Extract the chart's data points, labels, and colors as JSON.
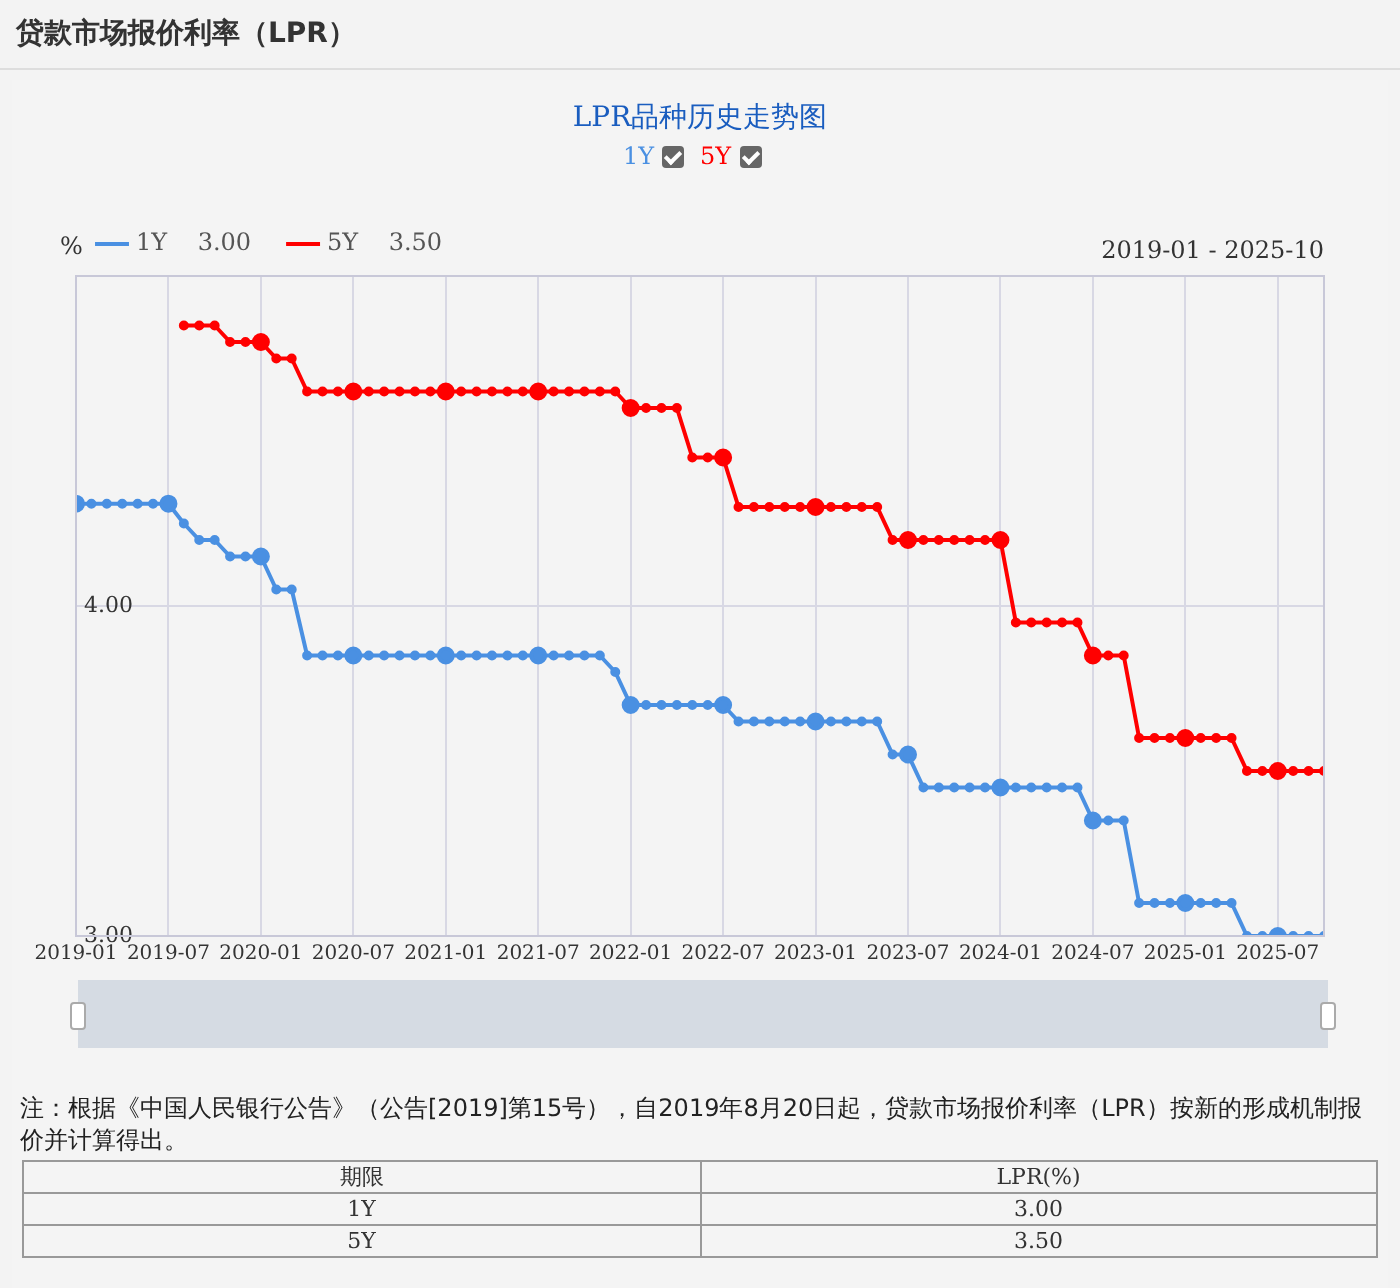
{
  "chart_data": {
    "type": "line",
    "title": "贷款市场报价利率（LPR）",
    "subtitle": "LPR品种历史走势图",
    "ylabel": "%",
    "annotations": [
      "2019-01 - 2025-10",
      "注：根据《中国人民银行公告》（公告[2019]第15号），自2019年8月20日起，贷款市场报价利率（LPR）按新的形成机制报价并计算得出。",
      "期限",
      "LPR(%)",
      "3.00",
      "3.50",
      "3.00",
      "3.50"
    ],
    "x": [
      "2019-01",
      "2019-02",
      "2019-03",
      "2019-04",
      "2019-05",
      "2019-06",
      "2019-07",
      "2019-08",
      "2019-09",
      "2019-10",
      "2019-11",
      "2019-12",
      "2020-01",
      "2020-02",
      "2020-03",
      "2020-04",
      "2020-05",
      "2020-06",
      "2020-07",
      "2020-08",
      "2020-09",
      "2020-10",
      "2020-11",
      "2020-12",
      "2021-01",
      "2021-02",
      "2021-03",
      "2021-04",
      "2021-05",
      "2021-06",
      "2021-07",
      "2021-08",
      "2021-09",
      "2021-10",
      "2021-11",
      "2021-12",
      "2022-01",
      "2022-02",
      "2022-03",
      "2022-04",
      "2022-05",
      "2022-06",
      "2022-07",
      "2022-08",
      "2022-09",
      "2022-10",
      "2022-11",
      "2022-12",
      "2023-01",
      "2023-02",
      "2023-03",
      "2023-04",
      "2023-05",
      "2023-06",
      "2023-07",
      "2023-08",
      "2023-09",
      "2023-10",
      "2023-11",
      "2023-12",
      "2024-01",
      "2024-02",
      "2024-03",
      "2024-04",
      "2024-05",
      "2024-06",
      "2024-07",
      "2024-08",
      "2024-09",
      "2024-10",
      "2024-11",
      "2024-12",
      "2025-01",
      "2025-02",
      "2025-03",
      "2025-04",
      "2025-05",
      "2025-06",
      "2025-07",
      "2025-08",
      "2025-09",
      "2025-10"
    ],
    "series": [
      {
        "name": "1Y",
        "color": "#4a90e2",
        "values": [
          4.31,
          4.31,
          4.31,
          4.31,
          4.31,
          4.31,
          4.31,
          4.25,
          4.2,
          4.2,
          4.15,
          4.15,
          4.15,
          4.05,
          4.05,
          3.85,
          3.85,
          3.85,
          3.85,
          3.85,
          3.85,
          3.85,
          3.85,
          3.85,
          3.85,
          3.85,
          3.85,
          3.85,
          3.85,
          3.85,
          3.85,
          3.85,
          3.85,
          3.85,
          3.85,
          3.8,
          3.7,
          3.7,
          3.7,
          3.7,
          3.7,
          3.7,
          3.7,
          3.65,
          3.65,
          3.65,
          3.65,
          3.65,
          3.65,
          3.65,
          3.65,
          3.65,
          3.65,
          3.55,
          3.55,
          3.45,
          3.45,
          3.45,
          3.45,
          3.45,
          3.45,
          3.45,
          3.45,
          3.45,
          3.45,
          3.45,
          3.35,
          3.35,
          3.35,
          3.1,
          3.1,
          3.1,
          3.1,
          3.1,
          3.1,
          3.1,
          3.0,
          3.0,
          3.0,
          3.0,
          3.0,
          3.0
        ]
      },
      {
        "name": "5Y",
        "color": "#ff0000",
        "values": [
          null,
          null,
          null,
          null,
          null,
          null,
          null,
          4.85,
          4.85,
          4.85,
          4.8,
          4.8,
          4.8,
          4.75,
          4.75,
          4.65,
          4.65,
          4.65,
          4.65,
          4.65,
          4.65,
          4.65,
          4.65,
          4.65,
          4.65,
          4.65,
          4.65,
          4.65,
          4.65,
          4.65,
          4.65,
          4.65,
          4.65,
          4.65,
          4.65,
          4.65,
          4.6,
          4.6,
          4.6,
          4.6,
          4.45,
          4.45,
          4.45,
          4.3,
          4.3,
          4.3,
          4.3,
          4.3,
          4.3,
          4.3,
          4.3,
          4.3,
          4.3,
          4.2,
          4.2,
          4.2,
          4.2,
          4.2,
          4.2,
          4.2,
          4.2,
          3.95,
          3.95,
          3.95,
          3.95,
          3.95,
          3.85,
          3.85,
          3.85,
          3.6,
          3.6,
          3.6,
          3.6,
          3.6,
          3.6,
          3.6,
          3.5,
          3.5,
          3.5,
          3.5,
          3.5,
          3.5
        ]
      }
    ],
    "xlim": [
      "2019-01",
      "2025-10"
    ],
    "xticks": [
      "2019-01",
      "2019-07",
      "2020-01",
      "2020-07",
      "2021-01",
      "2021-07",
      "2022-01",
      "2022-07",
      "2023-01",
      "2023-07",
      "2024-01",
      "2024-07",
      "2025-01",
      "2025-07"
    ],
    "ylim": [
      3,
      5
    ],
    "yticks": [
      {
        "value": 3,
        "label": "3.00"
      },
      {
        "value": 4,
        "label": "4.00"
      }
    ],
    "grid": true,
    "legend": "top left",
    "marker": "circle",
    "line_style": "solid"
  }
}
